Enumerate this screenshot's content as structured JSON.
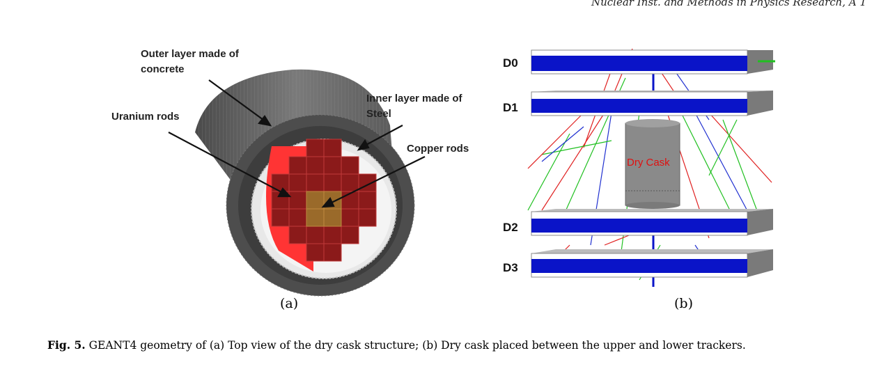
{
  "header": {
    "journal": "Nuclear Inst. and Methods in Physics Research, A 1"
  },
  "panel_a": {
    "annotations": {
      "outer_layer_line1": "Outer layer made of",
      "outer_layer_line2": "concrete",
      "uranium": "Uranium rods",
      "inner_layer_line1": "Inner layer made of",
      "inner_layer_line2": "Steel",
      "copper": "Copper rods"
    },
    "subcaption": "(a)",
    "colors": {
      "concrete": "#5a5a5a",
      "uranium": "#8b1a1a",
      "copper": "#9a6a2a",
      "background_red": "#ff3030"
    }
  },
  "panel_b": {
    "detectors": [
      "D0",
      "D1",
      "D2",
      "D3"
    ],
    "cask_label": "Dry Cask",
    "subcaption": "(b)",
    "colors": {
      "detector": "#0a14c8",
      "cask": "#8a8a8a",
      "track_red": "#e02020",
      "track_green": "#20c020",
      "track_blue": "#2030d0"
    }
  },
  "caption": {
    "label": "Fig. 5.",
    "text": "GEANT4 geometry of (a) Top view of the dry cask structure; (b) Dry cask placed between the upper and lower trackers."
  }
}
